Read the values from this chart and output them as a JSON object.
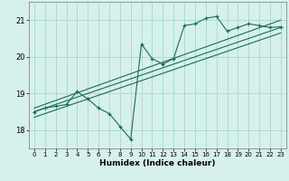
{
  "xlabel": "Humidex (Indice chaleur)",
  "background_color": "#d6f0eb",
  "line_color": "#1a6b5a",
  "grid_color": "#a8d8ce",
  "xlim": [
    -0.5,
    23.5
  ],
  "ylim": [
    17.5,
    21.5
  ],
  "xticks": [
    0,
    1,
    2,
    3,
    4,
    5,
    6,
    7,
    8,
    9,
    10,
    11,
    12,
    13,
    14,
    15,
    16,
    17,
    18,
    19,
    20,
    21,
    22,
    23
  ],
  "yticks": [
    18,
    19,
    20,
    21
  ],
  "data_x": [
    0,
    1,
    2,
    3,
    4,
    5,
    6,
    7,
    8,
    9,
    10,
    11,
    12,
    13,
    14,
    15,
    16,
    17,
    18,
    19,
    20,
    21,
    22,
    23
  ],
  "data_y": [
    18.5,
    18.6,
    18.65,
    18.7,
    19.05,
    18.85,
    18.6,
    18.45,
    18.1,
    17.75,
    20.35,
    19.95,
    19.8,
    19.95,
    20.85,
    20.9,
    21.05,
    21.1,
    20.7,
    20.8,
    20.9,
    20.85,
    20.8,
    20.82
  ],
  "trend_lines": [
    {
      "x": [
        0,
        23
      ],
      "y": [
        18.6,
        21.0
      ]
    },
    {
      "x": [
        0,
        23
      ],
      "y": [
        18.5,
        20.8
      ]
    },
    {
      "x": [
        0,
        23
      ],
      "y": [
        18.35,
        20.65
      ]
    }
  ]
}
